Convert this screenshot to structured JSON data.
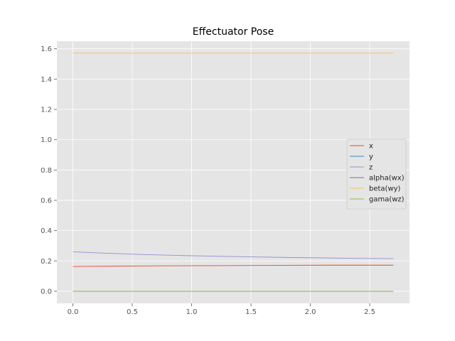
{
  "chart_data": {
    "type": "line",
    "title": "Effectuator Pose",
    "xlabel": "",
    "ylabel": "",
    "xlim": [
      -0.135,
      2.835
    ],
    "ylim": [
      -0.08,
      1.65
    ],
    "xticks": [
      0.0,
      0.5,
      1.0,
      1.5,
      2.0,
      2.5
    ],
    "xtick_labels": [
      "0.0",
      "0.5",
      "1.0",
      "1.5",
      "2.0",
      "2.5"
    ],
    "yticks": [
      0.0,
      0.2,
      0.4,
      0.6,
      0.8,
      1.0,
      1.2,
      1.4,
      1.6
    ],
    "ytick_labels": [
      "0.0",
      "0.2",
      "0.4",
      "0.6",
      "0.8",
      "1.0",
      "1.2",
      "1.4",
      "1.6"
    ],
    "grid": true,
    "legend_position": "center-right",
    "x": [
      0.0,
      0.3,
      0.6,
      0.9,
      1.2,
      1.5,
      1.8,
      2.1,
      2.4,
      2.7
    ],
    "series": [
      {
        "name": "x",
        "color": "#E24A33",
        "values": [
          0.163,
          0.165,
          0.167,
          0.168,
          0.169,
          0.17,
          0.171,
          0.172,
          0.172,
          0.172
        ]
      },
      {
        "name": "y",
        "color": "#348ABD",
        "values": [
          0.0,
          0.0,
          0.0,
          0.0,
          0.0,
          0.0,
          0.0,
          0.0,
          0.0,
          0.0
        ]
      },
      {
        "name": "z",
        "color": "#988ED5",
        "values": [
          0.26,
          0.25,
          0.242,
          0.236,
          0.231,
          0.227,
          0.223,
          0.22,
          0.217,
          0.215
        ]
      },
      {
        "name": "alpha(wx)",
        "color": "#777777",
        "values": [
          0.0,
          0.0,
          0.0,
          0.0,
          0.0,
          0.0,
          0.0,
          0.0,
          0.0,
          0.0
        ]
      },
      {
        "name": "beta(wy)",
        "color": "#FBC15E",
        "values": [
          1.571,
          1.571,
          1.571,
          1.571,
          1.571,
          1.571,
          1.571,
          1.571,
          1.571,
          1.571
        ]
      },
      {
        "name": "gama(wz)",
        "color": "#8EBA42",
        "values": [
          0.0,
          0.0,
          0.0,
          0.0,
          0.0,
          0.0,
          0.0,
          0.0,
          0.0,
          0.0
        ]
      }
    ],
    "colors": {
      "plot_background": "#E5E5E5",
      "grid": "#FFFFFF"
    }
  }
}
